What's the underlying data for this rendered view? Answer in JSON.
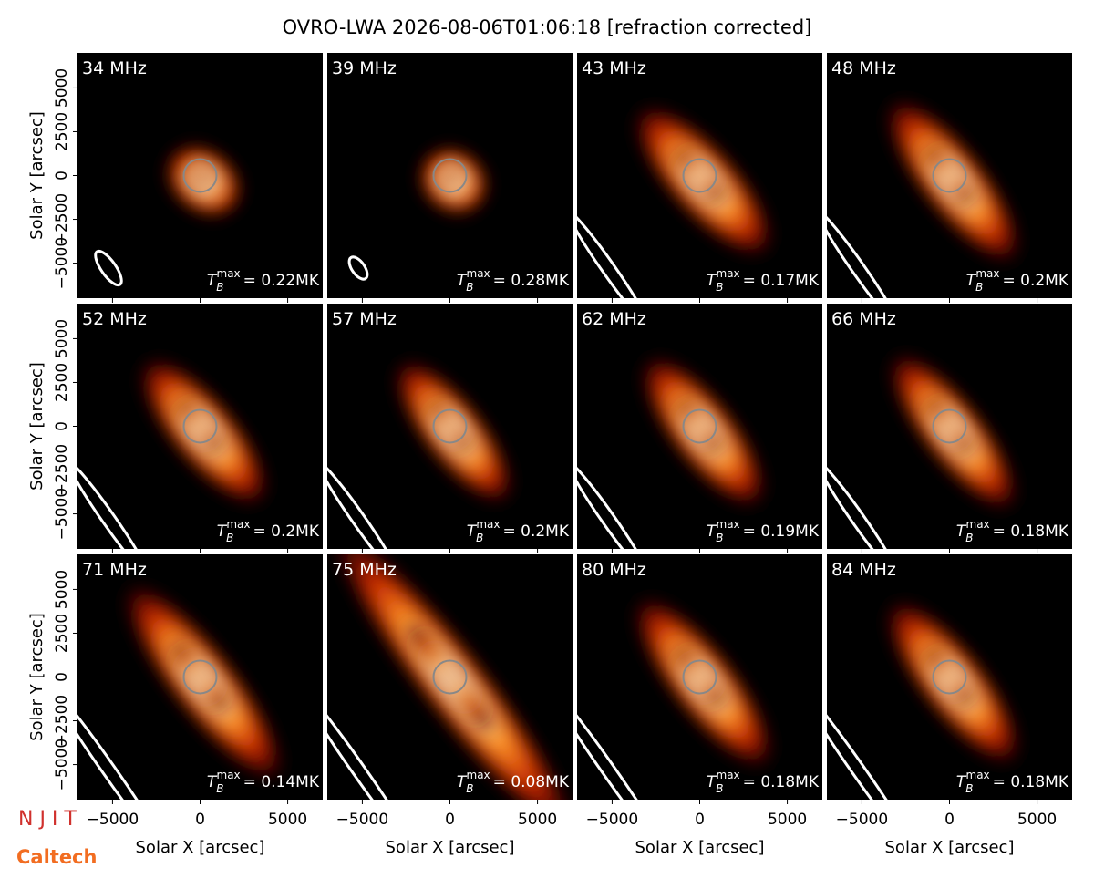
{
  "title": "OVRO-LWA 2026-08-06T01:06:18 [refraction corrected]",
  "logos": [
    "N J I T",
    "Caltech"
  ],
  "axes": {
    "xlabel": "Solar X [arcsec]",
    "ylabel": "Solar Y [arcsec]",
    "xlim": [
      -7000,
      7000
    ],
    "ylim": [
      -7000,
      7000
    ],
    "xticks": [
      {
        "value": -5000,
        "label": "−5000"
      },
      0,
      5000
    ],
    "yticks": [
      {
        "value": -5000,
        "label": "−5000"
      },
      {
        "value": -2500,
        "label": "−2500"
      },
      0,
      2500,
      5000
    ]
  },
  "annotation_symbol": {
    "base": "T",
    "sub": "B",
    "sup": "max"
  },
  "chart_data": [
    {
      "type": "image",
      "label": "34 MHz",
      "annotation": "= 0.22MK"
    },
    {
      "type": "image",
      "label": "39 MHz",
      "annotation": "= 0.28MK"
    },
    {
      "type": "image",
      "label": "43 MHz",
      "annotation": "= 0.17MK"
    },
    {
      "type": "image",
      "label": "48 MHz",
      "annotation": "= 0.2MK"
    },
    {
      "type": "image",
      "label": "52 MHz",
      "annotation": "= 0.2MK"
    },
    {
      "type": "image",
      "label": "57 MHz",
      "annotation": "= 0.2MK"
    },
    {
      "type": "image",
      "label": "62 MHz",
      "annotation": "= 0.19MK"
    },
    {
      "type": "image",
      "label": "66 MHz",
      "annotation": "= 0.18MK"
    },
    {
      "type": "image",
      "label": "71 MHz",
      "annotation": "= 0.14MK"
    },
    {
      "type": "image",
      "label": "75 MHz",
      "annotation": "= 0.08MK"
    },
    {
      "type": "image",
      "label": "80 MHz",
      "annotation": "= 0.18MK"
    },
    {
      "type": "image",
      "label": "84 MHz",
      "annotation": "= 0.18MK"
    }
  ]
}
